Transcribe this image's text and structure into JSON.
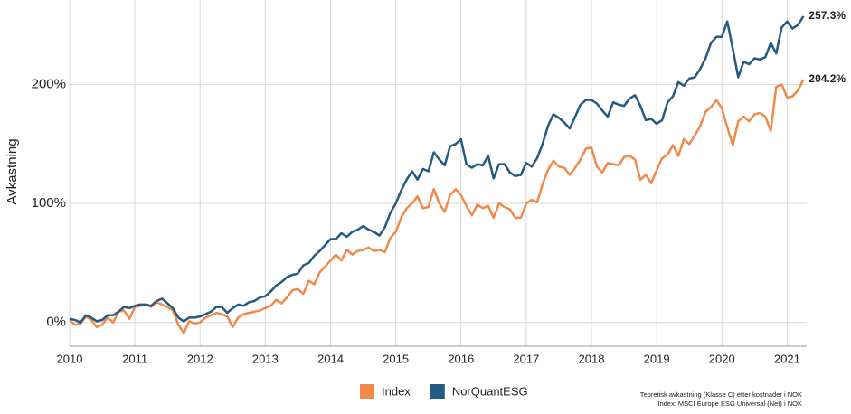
{
  "chart_data": {
    "type": "line",
    "y_label": "Avkastning",
    "xlim": [
      2010,
      2021.3
    ],
    "ylim": [
      -20,
      271
    ],
    "xticks": [
      2010,
      2011,
      2012,
      2013,
      2014,
      2015,
      2016,
      2017,
      2018,
      2019,
      2020,
      2021
    ],
    "yticks": [
      {
        "value": 0,
        "label": "0%"
      },
      {
        "value": 100,
        "label": "100%"
      },
      {
        "value": 200,
        "label": "200%"
      }
    ],
    "grid": true,
    "legend": "bottom",
    "x": [
      2010,
      2010.083,
      2010.167,
      2010.25,
      2010.333,
      2010.417,
      2010.5,
      2010.583,
      2010.667,
      2010.75,
      2010.833,
      2010.917,
      2011,
      2011.083,
      2011.167,
      2011.25,
      2011.333,
      2011.417,
      2011.5,
      2011.583,
      2011.667,
      2011.75,
      2011.833,
      2011.917,
      2012,
      2012.083,
      2012.167,
      2012.25,
      2012.333,
      2012.417,
      2012.5,
      2012.583,
      2012.667,
      2012.75,
      2012.833,
      2012.917,
      2013,
      2013.083,
      2013.167,
      2013.25,
      2013.333,
      2013.417,
      2013.5,
      2013.583,
      2013.667,
      2013.75,
      2013.833,
      2013.917,
      2014,
      2014.083,
      2014.167,
      2014.25,
      2014.333,
      2014.417,
      2014.5,
      2014.583,
      2014.667,
      2014.75,
      2014.833,
      2014.917,
      2015,
      2015.083,
      2015.167,
      2015.25,
      2015.333,
      2015.417,
      2015.5,
      2015.583,
      2015.667,
      2015.75,
      2015.833,
      2015.917,
      2016,
      2016.083,
      2016.167,
      2016.25,
      2016.333,
      2016.417,
      2016.5,
      2016.583,
      2016.667,
      2016.75,
      2016.833,
      2016.917,
      2017,
      2017.083,
      2017.167,
      2017.25,
      2017.333,
      2017.417,
      2017.5,
      2017.583,
      2017.667,
      2017.75,
      2017.833,
      2017.917,
      2018,
      2018.083,
      2018.167,
      2018.25,
      2018.333,
      2018.417,
      2018.5,
      2018.583,
      2018.667,
      2018.75,
      2018.833,
      2018.917,
      2019,
      2019.083,
      2019.167,
      2019.25,
      2019.333,
      2019.417,
      2019.5,
      2019.583,
      2019.667,
      2019.75,
      2019.833,
      2019.917,
      2020,
      2020.083,
      2020.167,
      2020.25,
      2020.333,
      2020.417,
      2020.5,
      2020.583,
      2020.667,
      2020.75,
      2020.833,
      2020.917,
      2021,
      2021.083,
      2021.167,
      2021.25
    ],
    "series": [
      {
        "name": "Index",
        "color": "#f08a4b",
        "values": [
          2,
          -2,
          -1,
          5,
          2,
          -4,
          -2,
          4,
          0,
          9,
          10,
          3,
          13,
          14,
          15,
          13,
          17,
          15,
          13,
          10,
          -2,
          -9,
          1,
          -1,
          0,
          4,
          6,
          8,
          7,
          5,
          -4,
          4,
          7,
          8,
          9,
          10,
          12,
          14,
          19,
          16,
          21,
          27,
          28,
          24,
          35,
          32,
          42,
          47,
          52,
          57,
          52,
          61,
          57,
          60,
          61,
          63,
          60,
          61,
          59,
          71,
          76,
          88,
          96,
          100,
          106,
          96,
          97,
          112,
          100,
          93,
          107,
          112,
          107,
          98,
          90,
          99,
          96,
          98,
          88,
          100,
          97,
          95,
          88,
          88,
          100,
          103,
          101,
          116,
          128,
          136,
          131,
          130,
          124,
          130,
          137,
          146,
          147,
          131,
          126,
          134,
          133,
          132,
          139,
          140,
          137,
          120,
          124,
          117,
          128,
          138,
          141,
          149,
          140,
          154,
          150,
          157,
          165,
          177,
          181,
          187,
          180,
          164,
          149,
          169,
          173,
          169,
          175,
          176,
          173,
          161,
          198,
          200,
          189,
          190,
          195,
          204.2
        ],
        "value_labels": {
          "135": "204.2%"
        }
      },
      {
        "name": "NorQuantESG",
        "color": "#255a82",
        "values": [
          3,
          2,
          0,
          6,
          4,
          1,
          2,
          6,
          6,
          9,
          13,
          12,
          14,
          15,
          15,
          14,
          18,
          20,
          16,
          12,
          4,
          1,
          4,
          4,
          5,
          7,
          9,
          13,
          13,
          8,
          12,
          15,
          14,
          17,
          18,
          21,
          22,
          26,
          31,
          34,
          38,
          40,
          41,
          48,
          50,
          56,
          60,
          65,
          70,
          70,
          75,
          72,
          76,
          78,
          81,
          78,
          76,
          73,
          80,
          92,
          100,
          111,
          120,
          127,
          120,
          129,
          127,
          143,
          137,
          132,
          148,
          150,
          154,
          133,
          130,
          133,
          132,
          140,
          121,
          133,
          133,
          126,
          123,
          124,
          134,
          131,
          138,
          150,
          165,
          175,
          172,
          168,
          163,
          173,
          183,
          187,
          187,
          184,
          178,
          173,
          185,
          183,
          182,
          188,
          191,
          182,
          170,
          171,
          167,
          170,
          185,
          190,
          202,
          199,
          205,
          206,
          213,
          222,
          235,
          240,
          240,
          253,
          230,
          206,
          219,
          217,
          222,
          221,
          223,
          235,
          226,
          248,
          253,
          247,
          250,
          257.3
        ],
        "value_labels": {
          "135": "257.3%"
        }
      }
    ],
    "footnotes": [
      "Teoretisk avkastning (Klasse C) etter kostnader i NOK",
      "Index: MSCI Europe ESG Universal (Net) i NOK"
    ]
  }
}
